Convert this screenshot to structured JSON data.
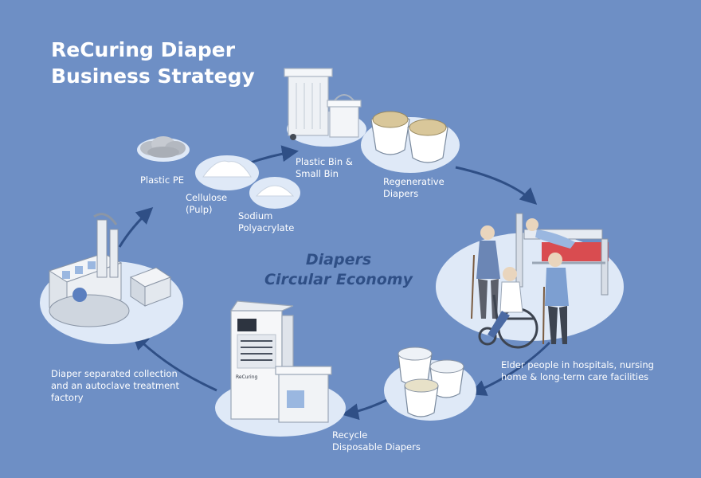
{
  "title": {
    "line1": "ReCuring Diaper",
    "line2": "Business Strategy"
  },
  "center": {
    "line1": "Diapers",
    "line2": "Circular Economy"
  },
  "labels": {
    "plastic_pe": "Plastic PE",
    "cellulose": "Cellulose\n(Pulp)",
    "sodium": "Sodium\nPolyacrylate",
    "bins": "Plastic Bin &\nSmall Bin",
    "regenerative": "Regenerative\nDiapers",
    "elder": "Elder people in hospitals, nursing\nhome & long-term care facilities",
    "recycle": "Recycle\nDisposable Diapers",
    "factory": "Diaper separated collection\nand an autoclave treatment\nfactory",
    "bin_brand": "ReCuring"
  },
  "colors": {
    "background": "#6e8fc5",
    "node_fill": "#dfe9f7",
    "arrow": "#2f4f86",
    "text": "#ffffff",
    "center_text": "#2f4f86"
  }
}
